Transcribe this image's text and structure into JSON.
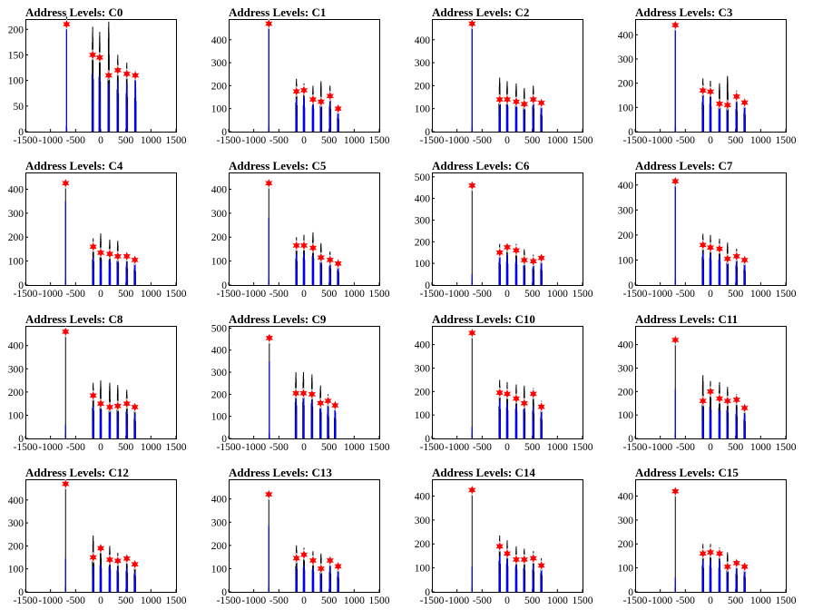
{
  "figure": {
    "x_tick_labels": [
      "-1500",
      "-1000",
      "-500",
      "0",
      "500",
      "1000",
      "1500"
    ],
    "colors": {
      "histogram_outer": "#000000",
      "histogram_inner": "#0000ff",
      "marker": "#ff0000",
      "marker_edge": "#ffffff"
    }
  },
  "chart_data": [
    {
      "type": "bar",
      "title": "Address Levels: C0",
      "xlim": [
        -1500,
        1500
      ],
      "ylim": [
        0,
        220
      ],
      "yticks": [
        0,
        50,
        100,
        150,
        200
      ],
      "grid": false,
      "levels_x": [
        -680,
        -160,
        -20,
        160,
        340,
        520,
        690
      ],
      "levels_y": [
        210,
        150,
        145,
        110,
        120,
        113,
        110
      ],
      "black_peaks": [
        225,
        205,
        195,
        215,
        150,
        135,
        120
      ],
      "blue_peaks": [
        210,
        120,
        115,
        100,
        105,
        100,
        110
      ]
    },
    {
      "type": "bar",
      "title": "Address Levels: C1",
      "xlim": [
        -1500,
        1500
      ],
      "ylim": [
        0,
        490
      ],
      "yticks": [
        0,
        100,
        200,
        300,
        400
      ],
      "grid": false,
      "levels_x": [
        -700,
        -150,
        0,
        180,
        340,
        520,
        680
      ],
      "levels_y": [
        470,
        175,
        180,
        140,
        130,
        155,
        100
      ],
      "black_peaks": [
        470,
        230,
        210,
        200,
        220,
        200,
        110
      ],
      "blue_peaks": [
        470,
        150,
        160,
        140,
        130,
        140,
        100
      ]
    },
    {
      "type": "bar",
      "title": "Address Levels: C2",
      "xlim": [
        -1500,
        1500
      ],
      "ylim": [
        0,
        490
      ],
      "yticks": [
        0,
        100,
        200,
        300,
        400
      ],
      "grid": false,
      "levels_x": [
        -700,
        -150,
        0,
        180,
        340,
        520,
        680
      ],
      "levels_y": [
        470,
        140,
        140,
        130,
        120,
        140,
        125
      ],
      "black_peaks": [
        470,
        235,
        220,
        210,
        190,
        200,
        140
      ],
      "blue_peaks": [
        460,
        120,
        125,
        120,
        110,
        125,
        120
      ]
    },
    {
      "type": "bar",
      "title": "Address Levels: C3",
      "xlim": [
        -1500,
        1500
      ],
      "ylim": [
        0,
        465
      ],
      "yticks": [
        0,
        100,
        200,
        300,
        400
      ],
      "grid": false,
      "levels_x": [
        -700,
        -150,
        0,
        180,
        340,
        520,
        680
      ],
      "levels_y": [
        440,
        170,
        165,
        115,
        110,
        145,
        120
      ],
      "black_peaks": [
        445,
        220,
        210,
        200,
        230,
        170,
        140
      ],
      "blue_peaks": [
        430,
        155,
        150,
        110,
        100,
        130,
        110
      ]
    },
    {
      "type": "bar",
      "title": "Address Levels: C4",
      "xlim": [
        -1500,
        1500
      ],
      "ylim": [
        0,
        470
      ],
      "yticks": [
        0,
        100,
        200,
        300,
        400
      ],
      "grid": false,
      "levels_x": [
        -700,
        -150,
        0,
        180,
        340,
        520,
        680
      ],
      "levels_y": [
        425,
        160,
        135,
        130,
        120,
        120,
        105
      ],
      "black_peaks": [
        425,
        195,
        215,
        190,
        185,
        140,
        115
      ],
      "blue_peaks": [
        350,
        120,
        110,
        110,
        110,
        100,
        100
      ]
    },
    {
      "type": "bar",
      "title": "Address Levels: C5",
      "xlim": [
        -1500,
        1500
      ],
      "ylim": [
        0,
        470
      ],
      "yticks": [
        0,
        100,
        200,
        300,
        400
      ],
      "grid": false,
      "levels_x": [
        -700,
        -150,
        0,
        180,
        340,
        520,
        680
      ],
      "levels_y": [
        425,
        165,
        165,
        155,
        115,
        105,
        90
      ],
      "black_peaks": [
        425,
        200,
        210,
        220,
        175,
        140,
        110
      ],
      "blue_peaks": [
        280,
        135,
        140,
        130,
        110,
        100,
        80
      ]
    },
    {
      "type": "bar",
      "title": "Address Levels: C6",
      "xlim": [
        -1500,
        1500
      ],
      "ylim": [
        0,
        520
      ],
      "yticks": [
        0,
        100,
        200,
        300,
        400,
        500
      ],
      "grid": false,
      "levels_x": [
        -700,
        -150,
        0,
        180,
        340,
        520,
        680
      ],
      "levels_y": [
        460,
        150,
        175,
        160,
        115,
        110,
        125
      ],
      "black_peaks": [
        470,
        190,
        195,
        190,
        165,
        140,
        135
      ],
      "blue_peaks": [
        50,
        140,
        150,
        130,
        110,
        100,
        110
      ]
    },
    {
      "type": "bar",
      "title": "Address Levels: C7",
      "xlim": [
        -1500,
        1500
      ],
      "ylim": [
        0,
        450
      ],
      "yticks": [
        0,
        100,
        200,
        300,
        400
      ],
      "grid": false,
      "levels_x": [
        -700,
        -150,
        0,
        180,
        340,
        520,
        680
      ],
      "levels_y": [
        415,
        160,
        150,
        145,
        105,
        115,
        100
      ],
      "black_peaks": [
        420,
        205,
        200,
        185,
        170,
        145,
        115
      ],
      "blue_peaks": [
        400,
        135,
        130,
        125,
        100,
        100,
        90
      ]
    },
    {
      "type": "bar",
      "title": "Address Levels: C8",
      "xlim": [
        -1500,
        1500
      ],
      "ylim": [
        0,
        485
      ],
      "yticks": [
        0,
        100,
        200,
        300,
        400
      ],
      "grid": false,
      "levels_x": [
        -700,
        -150,
        0,
        180,
        340,
        520,
        680
      ],
      "levels_y": [
        460,
        185,
        150,
        135,
        140,
        150,
        135
      ],
      "black_peaks": [
        460,
        240,
        250,
        240,
        230,
        210,
        150
      ],
      "blue_peaks": [
        60,
        145,
        140,
        120,
        120,
        125,
        110
      ]
    },
    {
      "type": "bar",
      "title": "Address Levels: C9",
      "xlim": [
        -1500,
        1500
      ],
      "ylim": [
        0,
        510
      ],
      "yticks": [
        0,
        100,
        200,
        300,
        400,
        500
      ],
      "grid": false,
      "levels_x": [
        -690,
        -160,
        -10,
        160,
        330,
        480,
        620
      ],
      "levels_y": [
        455,
        205,
        205,
        200,
        160,
        170,
        150
      ],
      "black_peaks": [
        460,
        300,
        300,
        290,
        240,
        200,
        170
      ],
      "blue_peaks": [
        350,
        200,
        195,
        190,
        150,
        150,
        140
      ]
    },
    {
      "type": "bar",
      "title": "Address Levels: C10",
      "xlim": [
        -1500,
        1500
      ],
      "ylim": [
        0,
        480
      ],
      "yticks": [
        0,
        100,
        200,
        300,
        400
      ],
      "grid": false,
      "levels_x": [
        -700,
        -150,
        0,
        180,
        340,
        520,
        680
      ],
      "levels_y": [
        450,
        195,
        190,
        170,
        150,
        190,
        135
      ],
      "black_peaks": [
        455,
        250,
        240,
        230,
        225,
        215,
        160
      ],
      "blue_peaks": [
        50,
        170,
        160,
        150,
        140,
        150,
        120
      ]
    },
    {
      "type": "bar",
      "title": "Address Levels: C11",
      "xlim": [
        -1500,
        1500
      ],
      "ylim": [
        0,
        480
      ],
      "yticks": [
        0,
        100,
        200,
        300,
        400
      ],
      "grid": false,
      "levels_x": [
        -700,
        -150,
        0,
        180,
        340,
        520,
        680
      ],
      "levels_y": [
        420,
        160,
        200,
        170,
        160,
        165,
        130
      ],
      "black_peaks": [
        420,
        270,
        245,
        240,
        220,
        190,
        145
      ],
      "blue_peaks": [
        210,
        140,
        140,
        130,
        130,
        130,
        110
      ]
    },
    {
      "type": "bar",
      "title": "Address Levels: C12",
      "xlim": [
        -1500,
        1500
      ],
      "ylim": [
        0,
        490
      ],
      "yticks": [
        0,
        100,
        200,
        300,
        400
      ],
      "grid": false,
      "levels_x": [
        -700,
        -150,
        0,
        180,
        340,
        520,
        680
      ],
      "levels_y": [
        470,
        150,
        190,
        140,
        135,
        145,
        120
      ],
      "black_peaks": [
        470,
        245,
        210,
        200,
        170,
        165,
        140
      ],
      "blue_peaks": [
        145,
        120,
        125,
        120,
        110,
        110,
        90
      ]
    },
    {
      "type": "bar",
      "title": "Address Levels: C13",
      "xlim": [
        -1500,
        1500
      ],
      "ylim": [
        0,
        485
      ],
      "yticks": [
        0,
        100,
        200,
        300,
        400
      ],
      "grid": false,
      "levels_x": [
        -700,
        -150,
        0,
        180,
        340,
        520,
        680
      ],
      "levels_y": [
        420,
        145,
        160,
        135,
        100,
        135,
        110
      ],
      "black_peaks": [
        440,
        200,
        190,
        175,
        165,
        155,
        120
      ],
      "blue_peaks": [
        285,
        110,
        120,
        110,
        90,
        120,
        90
      ]
    },
    {
      "type": "bar",
      "title": "Address Levels: C14",
      "xlim": [
        -1500,
        1500
      ],
      "ylim": [
        0,
        470
      ],
      "yticks": [
        0,
        100,
        200,
        300,
        400
      ],
      "grid": false,
      "levels_x": [
        -700,
        -150,
        0,
        180,
        340,
        520,
        680
      ],
      "levels_y": [
        425,
        190,
        160,
        135,
        135,
        140,
        110
      ],
      "black_peaks": [
        430,
        235,
        215,
        190,
        180,
        170,
        140
      ],
      "blue_peaks": [
        105,
        160,
        150,
        120,
        110,
        120,
        100
      ]
    },
    {
      "type": "bar",
      "title": "Address Levels: C15",
      "xlim": [
        -1500,
        1500
      ],
      "ylim": [
        0,
        470
      ],
      "yticks": [
        0,
        100,
        200,
        300,
        400
      ],
      "grid": false,
      "levels_x": [
        -700,
        -150,
        0,
        180,
        340,
        520,
        680
      ],
      "levels_y": [
        420,
        160,
        165,
        160,
        105,
        120,
        105
      ],
      "black_peaks": [
        430,
        200,
        200,
        185,
        165,
        140,
        120
      ],
      "blue_peaks": [
        60,
        140,
        140,
        140,
        100,
        110,
        90
      ]
    }
  ]
}
